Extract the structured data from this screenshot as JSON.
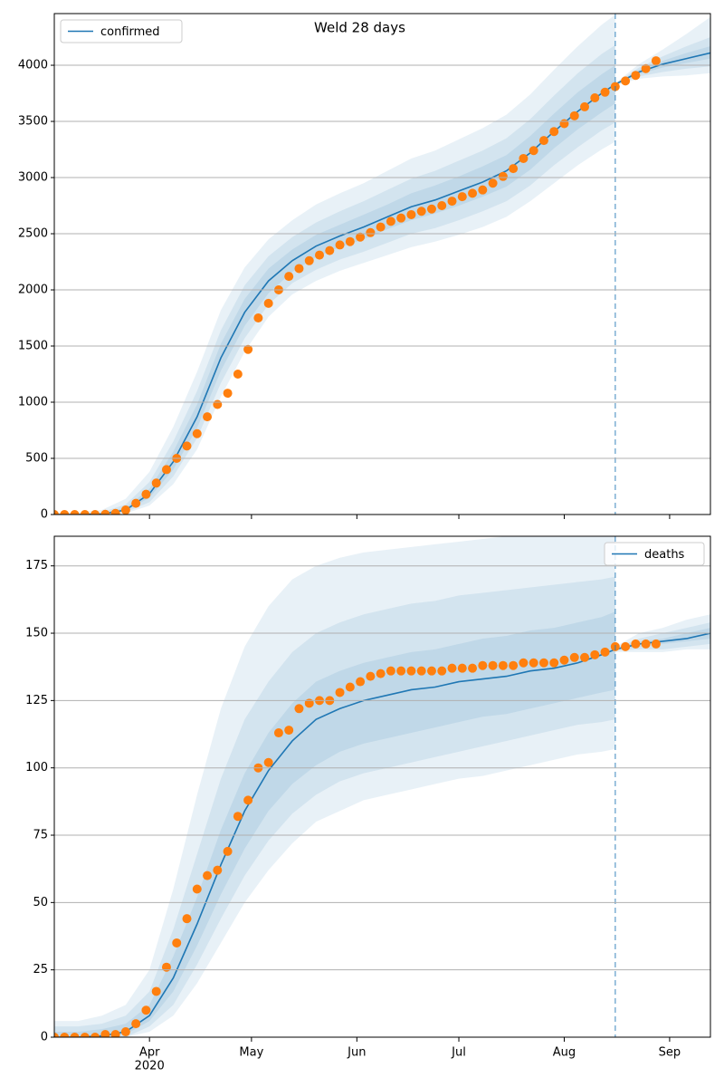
{
  "chart_data": [
    {
      "type": "line",
      "title": "Weld 28 days",
      "xlim": [
        "2020-03-04",
        "2020-09-13"
      ],
      "xticks": [
        "2020-04-01",
        "2020-05-01",
        "2020-06-01",
        "2020-07-01",
        "2020-08-01",
        "2020-09-01"
      ],
      "ylim": [
        0,
        4460
      ],
      "yticks": [
        0,
        500,
        1000,
        1500,
        2000,
        2500,
        3000,
        3500,
        4000
      ],
      "grid": true,
      "legend": "upper left",
      "band_color": "#1f77b4",
      "band_opacity": 0.1,
      "x": [
        "2020-03-04",
        "2020-03-11",
        "2020-03-18",
        "2020-03-25",
        "2020-04-01",
        "2020-04-08",
        "2020-04-15",
        "2020-04-22",
        "2020-04-29",
        "2020-05-06",
        "2020-05-13",
        "2020-05-20",
        "2020-05-27",
        "2020-06-03",
        "2020-06-10",
        "2020-06-17",
        "2020-06-24",
        "2020-07-01",
        "2020-07-08",
        "2020-07-15",
        "2020-07-22",
        "2020-07-29",
        "2020-08-05",
        "2020-08-12",
        "2020-08-16",
        "2020-08-16",
        "2020-08-23",
        "2020-08-30",
        "2020-09-06",
        "2020-09-13"
      ],
      "bands": [
        {
          "lower": [
            0,
            0,
            0,
            10,
            80,
            270,
            580,
            1050,
            1450,
            1760,
            1960,
            2080,
            2170,
            2240,
            2310,
            2380,
            2430,
            2490,
            2560,
            2650,
            2790,
            2950,
            3110,
            3250,
            3320,
            3820,
            3880,
            3900,
            3910,
            3930
          ],
          "upper": [
            10,
            20,
            40,
            140,
            380,
            780,
            1270,
            1820,
            2200,
            2450,
            2620,
            2760,
            2860,
            2950,
            3060,
            3170,
            3240,
            3340,
            3440,
            3560,
            3740,
            3960,
            4170,
            4360,
            4450,
            3840,
            4010,
            4140,
            4280,
            4430
          ]
        },
        {
          "lower": [
            0,
            0,
            0,
            20,
            110,
            340,
            680,
            1170,
            1570,
            1870,
            2060,
            2180,
            2270,
            2340,
            2420,
            2500,
            2550,
            2620,
            2700,
            2790,
            2930,
            3110,
            3270,
            3420,
            3490,
            3825,
            3900,
            3940,
            3970,
            3990
          ],
          "upper": [
            5,
            8,
            20,
            90,
            290,
            650,
            1100,
            1640,
            2040,
            2300,
            2470,
            2600,
            2700,
            2790,
            2890,
            2990,
            3060,
            3150,
            3240,
            3350,
            3520,
            3730,
            3930,
            4100,
            4180,
            3835,
            3980,
            4080,
            4170,
            4250
          ]
        },
        {
          "lower": [
            0,
            0,
            2,
            30,
            150,
            400,
            770,
            1280,
            1680,
            1970,
            2160,
            2290,
            2380,
            2450,
            2540,
            2620,
            2680,
            2750,
            2830,
            2920,
            3070,
            3260,
            3430,
            3580,
            3660,
            3828,
            3920,
            3980,
            4020,
            4060
          ],
          "upper": [
            0,
            3,
            10,
            60,
            230,
            560,
            980,
            1520,
            1920,
            2190,
            2360,
            2490,
            2580,
            2670,
            2760,
            2860,
            2930,
            3010,
            3100,
            3200,
            3370,
            3570,
            3760,
            3920,
            4000,
            3832,
            3960,
            4040,
            4110,
            4170
          ]
        }
      ],
      "series": [
        {
          "name": "confirmed",
          "color": "#1f77b4",
          "values": [
            0,
            0,
            5,
            40,
            185,
            470,
            870,
            1395,
            1800,
            2080,
            2260,
            2390,
            2480,
            2560,
            2650,
            2740,
            2800,
            2880,
            2960,
            3060,
            3220,
            3410,
            3590,
            3750,
            3830,
            3830,
            3940,
            4010,
            4060,
            4110
          ]
        }
      ],
      "observed": {
        "color": "#ff7f0e",
        "x": [
          "2020-03-04",
          "2020-03-07",
          "2020-03-10",
          "2020-03-13",
          "2020-03-16",
          "2020-03-19",
          "2020-03-22",
          "2020-03-25",
          "2020-03-28",
          "2020-03-31",
          "2020-04-03",
          "2020-04-06",
          "2020-04-09",
          "2020-04-12",
          "2020-04-15",
          "2020-04-18",
          "2020-04-21",
          "2020-04-24",
          "2020-04-27",
          "2020-04-30",
          "2020-05-03",
          "2020-05-06",
          "2020-05-09",
          "2020-05-12",
          "2020-05-15",
          "2020-05-18",
          "2020-05-21",
          "2020-05-24",
          "2020-05-27",
          "2020-05-30",
          "2020-06-02",
          "2020-06-05",
          "2020-06-08",
          "2020-06-11",
          "2020-06-14",
          "2020-06-17",
          "2020-06-20",
          "2020-06-23",
          "2020-06-26",
          "2020-06-29",
          "2020-07-02",
          "2020-07-05",
          "2020-07-08",
          "2020-07-11",
          "2020-07-14",
          "2020-07-17",
          "2020-07-20",
          "2020-07-23",
          "2020-07-26",
          "2020-07-29",
          "2020-08-01",
          "2020-08-04",
          "2020-08-07",
          "2020-08-10",
          "2020-08-13",
          "2020-08-16",
          "2020-08-19",
          "2020-08-22",
          "2020-08-25",
          "2020-08-28"
        ],
        "values": [
          0,
          0,
          0,
          0,
          0,
          2,
          10,
          40,
          100,
          180,
          280,
          400,
          500,
          610,
          720,
          870,
          980,
          1080,
          1250,
          1470,
          1750,
          1880,
          2000,
          2120,
          2190,
          2260,
          2310,
          2350,
          2400,
          2430,
          2470,
          2510,
          2560,
          2610,
          2640,
          2670,
          2700,
          2720,
          2750,
          2790,
          2830,
          2860,
          2890,
          2950,
          3010,
          3080,
          3170,
          3240,
          3330,
          3410,
          3480,
          3550,
          3630,
          3710,
          3760,
          3810,
          3860,
          3910,
          3970,
          4040
        ]
      },
      "vline": {
        "x": "2020-08-16",
        "color": "#1f77b4",
        "dashed": true
      }
    },
    {
      "type": "line",
      "xlim": [
        "2020-03-04",
        "2020-09-13"
      ],
      "xticks": [
        {
          "value": "2020-04-01",
          "label": "Apr"
        },
        {
          "value": "2020-05-01",
          "label": "May"
        },
        {
          "value": "2020-06-01",
          "label": "Jun"
        },
        {
          "value": "2020-07-01",
          "label": "Jul"
        },
        {
          "value": "2020-08-01",
          "label": "Aug"
        },
        {
          "value": "2020-09-01",
          "label": "Sep"
        }
      ],
      "x_year_label": "2020",
      "ylim": [
        0,
        186
      ],
      "yticks": [
        0,
        25,
        50,
        75,
        100,
        125,
        150,
        175
      ],
      "grid": true,
      "legend": "upper right",
      "band_color": "#1f77b4",
      "band_opacity": 0.1,
      "x": [
        "2020-03-04",
        "2020-03-11",
        "2020-03-18",
        "2020-03-25",
        "2020-04-01",
        "2020-04-08",
        "2020-04-15",
        "2020-04-22",
        "2020-04-29",
        "2020-05-06",
        "2020-05-13",
        "2020-05-20",
        "2020-05-27",
        "2020-06-03",
        "2020-06-10",
        "2020-06-17",
        "2020-06-24",
        "2020-07-01",
        "2020-07-08",
        "2020-07-15",
        "2020-07-22",
        "2020-07-29",
        "2020-08-05",
        "2020-08-12",
        "2020-08-16",
        "2020-08-16",
        "2020-08-23",
        "2020-08-30",
        "2020-09-06",
        "2020-09-13"
      ],
      "bands": [
        {
          "lower": [
            0,
            0,
            0,
            0,
            2,
            8,
            20,
            35,
            50,
            62,
            72,
            80,
            84,
            88,
            90,
            92,
            94,
            96,
            97,
            99,
            101,
            103,
            105,
            106,
            107,
            143,
            143,
            143,
            144,
            144
          ],
          "upper": [
            6,
            6,
            8,
            12,
            25,
            55,
            90,
            122,
            145,
            160,
            170,
            175,
            178,
            180,
            181,
            182,
            183,
            184,
            185,
            186,
            186,
            186,
            186,
            186,
            186,
            145,
            150,
            152,
            155,
            157
          ]
        },
        {
          "lower": [
            0,
            0,
            0,
            0,
            4,
            12,
            27,
            44,
            60,
            73,
            83,
            90,
            95,
            98,
            100,
            102,
            104,
            106,
            108,
            110,
            112,
            114,
            116,
            117,
            118,
            143.5,
            144,
            144,
            145,
            146
          ],
          "upper": [
            4,
            4,
            5,
            8,
            17,
            40,
            68,
            96,
            118,
            132,
            143,
            150,
            154,
            157,
            159,
            161,
            162,
            164,
            165,
            166,
            167,
            168,
            169,
            170,
            171,
            144.5,
            148,
            150,
            152,
            154
          ]
        },
        {
          "lower": [
            0,
            0,
            0,
            1,
            6,
            17,
            34,
            53,
            70,
            84,
            94,
            101,
            106,
            109,
            111,
            113,
            115,
            117,
            119,
            120,
            122,
            124,
            126,
            128,
            129,
            143.8,
            145,
            146,
            147,
            148
          ],
          "upper": [
            2,
            2,
            3,
            5,
            12,
            30,
            52,
            77,
            98,
            113,
            124,
            132,
            136,
            139,
            141,
            143,
            144,
            146,
            148,
            149,
            151,
            152,
            154,
            156,
            158,
            144.2,
            147,
            148,
            150,
            152
          ]
        }
      ],
      "series": [
        {
          "name": "deaths",
          "color": "#1f77b4",
          "values": [
            0,
            0,
            0.5,
            2,
            8,
            22,
            42,
            64,
            84,
            99,
            110,
            118,
            122,
            125,
            127,
            129,
            130,
            132,
            133,
            134,
            136,
            137,
            139,
            142,
            144,
            144,
            146,
            147,
            148,
            150
          ]
        }
      ],
      "observed": {
        "color": "#ff7f0e",
        "x": [
          "2020-03-04",
          "2020-03-07",
          "2020-03-10",
          "2020-03-13",
          "2020-03-16",
          "2020-03-19",
          "2020-03-22",
          "2020-03-25",
          "2020-03-28",
          "2020-03-31",
          "2020-04-03",
          "2020-04-06",
          "2020-04-09",
          "2020-04-12",
          "2020-04-15",
          "2020-04-18",
          "2020-04-21",
          "2020-04-24",
          "2020-04-27",
          "2020-04-30",
          "2020-05-03",
          "2020-05-06",
          "2020-05-09",
          "2020-05-12",
          "2020-05-15",
          "2020-05-18",
          "2020-05-21",
          "2020-05-24",
          "2020-05-27",
          "2020-05-30",
          "2020-06-02",
          "2020-06-05",
          "2020-06-08",
          "2020-06-11",
          "2020-06-14",
          "2020-06-17",
          "2020-06-20",
          "2020-06-23",
          "2020-06-26",
          "2020-06-29",
          "2020-07-02",
          "2020-07-05",
          "2020-07-08",
          "2020-07-11",
          "2020-07-14",
          "2020-07-17",
          "2020-07-20",
          "2020-07-23",
          "2020-07-26",
          "2020-07-29",
          "2020-08-01",
          "2020-08-04",
          "2020-08-07",
          "2020-08-10",
          "2020-08-13",
          "2020-08-16",
          "2020-08-19",
          "2020-08-22",
          "2020-08-25",
          "2020-08-28"
        ],
        "values": [
          0,
          0,
          0,
          0,
          0,
          1,
          1,
          2,
          5,
          10,
          17,
          26,
          35,
          44,
          55,
          60,
          62,
          69,
          82,
          88,
          100,
          102,
          113,
          114,
          122,
          124,
          125,
          125,
          128,
          130,
          132,
          134,
          135,
          136,
          136,
          136,
          136,
          136,
          136,
          137,
          137,
          137,
          138,
          138,
          138,
          138,
          139,
          139,
          139,
          139,
          140,
          141,
          141,
          142,
          143,
          145,
          145,
          146,
          146,
          146
        ]
      },
      "vline": {
        "x": "2020-08-16",
        "color": "#1f77b4",
        "dashed": true
      }
    }
  ]
}
